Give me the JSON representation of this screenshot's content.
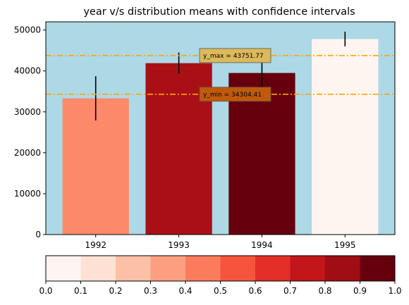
{
  "chart_data": {
    "type": "bar",
    "title": "year v/s distribution means with confidence intervals",
    "xlabel": "",
    "ylabel": "",
    "categories": [
      "1992",
      "1993",
      "1994",
      "1995"
    ],
    "values": [
      33300,
      41900,
      39500,
      47800
    ],
    "errors": [
      5400,
      2600,
      3500,
      1800
    ],
    "bar_colors": [
      "#fc8a6a",
      "#a91016",
      "#67000d",
      "#fff5f0"
    ],
    "ylim": [
      0,
      52000
    ],
    "yticks": [
      0,
      10000,
      20000,
      30000,
      40000,
      50000
    ],
    "ytick_labels": [
      "0",
      "10000",
      "20000",
      "30000",
      "40000",
      "50000"
    ],
    "background_color": "#add8e6",
    "reference_lines": [
      {
        "value": 43751.77,
        "label": "y_max = 43751.77",
        "color": "#ffa500",
        "box_color": "#dcb95a"
      },
      {
        "value": 34304.41,
        "label": "y_min = 34304.41",
        "color": "#ffa500",
        "box_color": "#c05a0a"
      }
    ],
    "colorbar": {
      "range": [
        0,
        1
      ],
      "ticks": [
        "0.0",
        "0.1",
        "0.2",
        "0.3",
        "0.4",
        "0.5",
        "0.6",
        "0.7",
        "0.8",
        "0.9",
        "1.0"
      ],
      "colors": [
        "#fff5f0",
        "#fee1d4",
        "#fcc0a7",
        "#fc9f81",
        "#fb7c5c",
        "#f5553d",
        "#e32f27",
        "#c3161b",
        "#9f0e14",
        "#67000d"
      ]
    }
  }
}
